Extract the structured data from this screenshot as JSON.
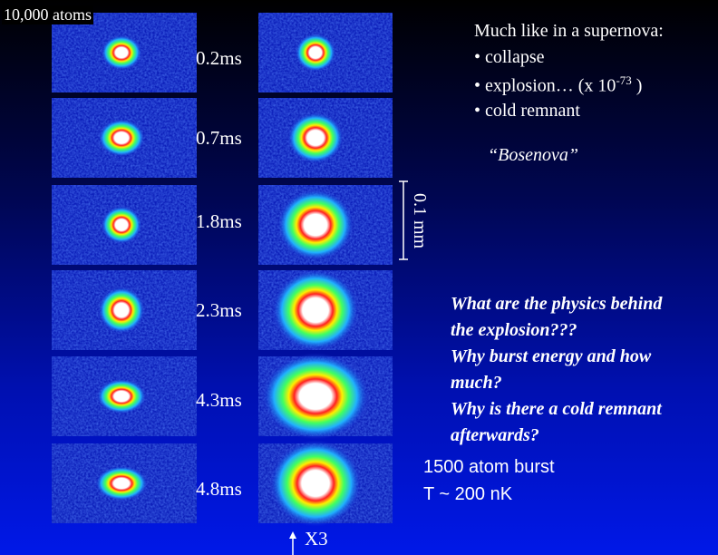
{
  "header": {
    "label": "10,000 atoms"
  },
  "rows": [
    {
      "time": "0.2ms"
    },
    {
      "time": "0.7ms"
    },
    {
      "time": "1.8ms"
    },
    {
      "time": "2.3ms"
    },
    {
      "time": "4.3ms"
    },
    {
      "time": "4.8ms"
    }
  ],
  "notes": {
    "heading": "Much like in a supernova:",
    "collapse": "• collapse",
    "explosion": {
      "text": "• explosion…  (x 10",
      "superscript": "-73",
      "close": " )"
    },
    "remnant": "• cold remnant",
    "nickname": "“Bosenova”"
  },
  "scale_bar": {
    "label": "0.1 mm"
  },
  "questions": [
    "What are the physics behind",
    "the explosion???",
    "Why burst energy and how",
    "much?",
    "Why is there a cold remnant",
    "afterwards?"
  ],
  "burst": [
    "1500 atom burst",
    "T ~ 200 nK"
  ],
  "magnification": {
    "label": "X3"
  }
}
